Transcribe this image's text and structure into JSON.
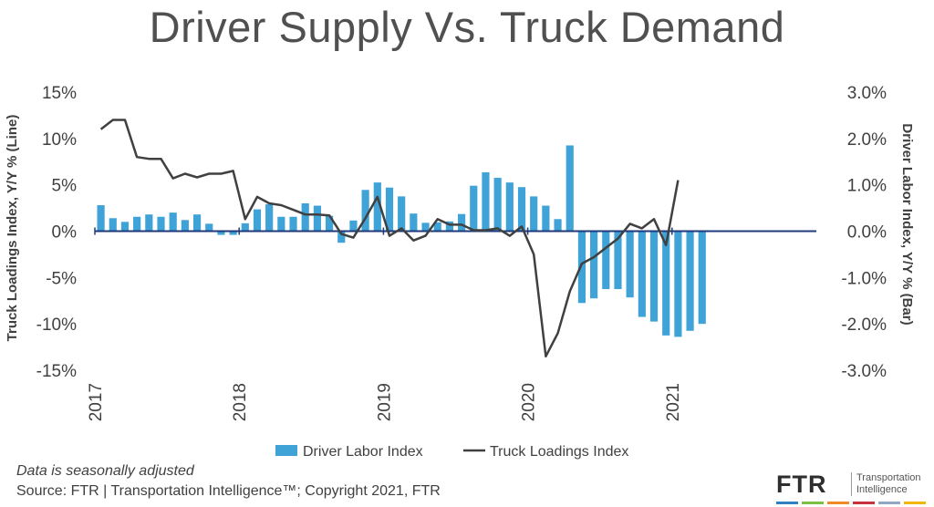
{
  "title": "Driver Supply Vs. Truck Demand",
  "footnote": "Data is seasonally adjusted",
  "source": "Source: FTR | Transportation Intelligence™; Copyright 2021, FTR",
  "logo": {
    "word": "FTR",
    "line1": "Transportation",
    "line2": "Intelligence",
    "colors": [
      "#2f80c2",
      "#7bc043",
      "#f08a24",
      "#c7323d",
      "#8fa9c4",
      "#f2b705"
    ]
  },
  "colors": {
    "bar": "#3fa3d7",
    "line": "#404040",
    "zero_axis": "#1f3a7a"
  },
  "chart_data": {
    "type": "bar+line",
    "left_axis": {
      "label": "Truck Loadings Index, Y/Y % (Line)",
      "ticks": [
        "15%",
        "10%",
        "5%",
        "0%",
        "-5%",
        "-10%",
        "-15%"
      ],
      "range": [
        -15,
        15
      ]
    },
    "right_axis": {
      "label": "Driver Labor Index, Y/Y % (Bar)",
      "ticks": [
        "3.0%",
        "2.0%",
        "1.0%",
        "0.0%",
        "-1.0%",
        "-2.0%",
        "-3.0%"
      ],
      "range": [
        -3,
        3
      ]
    },
    "x_ticks": [
      "2017",
      "2018",
      "2019",
      "2020",
      "2021"
    ],
    "x_start": "2017-01",
    "n_months": 60,
    "bar_series": {
      "name": "Driver Labor Index",
      "axis": "right",
      "values": [
        0.56,
        0.28,
        0.2,
        0.31,
        0.36,
        0.31,
        0.4,
        0.24,
        0.36,
        0.16,
        -0.08,
        -0.08,
        0.17,
        0.47,
        0.58,
        0.31,
        0.31,
        0.6,
        0.55,
        0.33,
        -0.25,
        0.23,
        0.89,
        1.05,
        0.94,
        0.75,
        0.38,
        0.18,
        0.19,
        0.21,
        0.37,
        0.98,
        1.27,
        1.15,
        1.05,
        0.95,
        0.75,
        0.55,
        0.26,
        1.85,
        -1.55,
        -1.45,
        -1.25,
        -1.25,
        -1.43,
        -1.85,
        -1.95,
        -2.25,
        -2.28,
        -2.15,
        -2.0
      ]
    },
    "line_series": {
      "name": "Truck Loadings Index",
      "axis": "left",
      "values": [
        11,
        12,
        12,
        8,
        7.8,
        7.8,
        5.7,
        6.2,
        5.8,
        6.2,
        6.2,
        6.5,
        1.3,
        3.7,
        3,
        2.8,
        2.3,
        1.8,
        1.8,
        1.7,
        -0.3,
        -0.7,
        1.4,
        3.7,
        -0.5,
        0.3,
        -1,
        -0.5,
        1.3,
        0.7,
        0.7,
        0.1,
        0.1,
        0.3,
        -0.5,
        0.5,
        -2.5,
        -13.5,
        -11,
        -6.5,
        -3.5,
        -2.8,
        -1.8,
        -0.8,
        0.8,
        0.3,
        1.3,
        -1.5,
        5.5
      ]
    },
    "legend": [
      "Driver Labor Index",
      "Truck Loadings Index"
    ],
    "legend_position": "bottom-center",
    "grid": false
  }
}
